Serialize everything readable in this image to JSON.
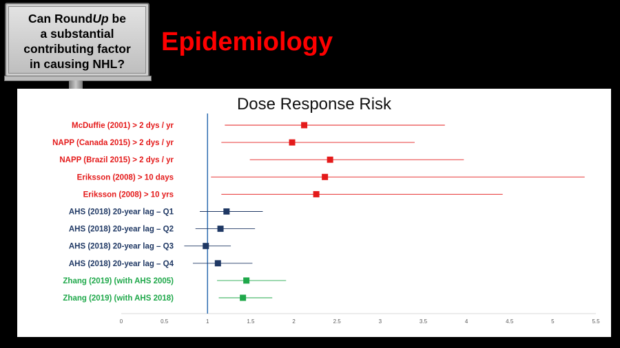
{
  "sign": {
    "line1_pre": "Can Round",
    "line1_em": "Up",
    "line1_post": " be",
    "line2": "a substantial",
    "line3": "contributing factor",
    "line4": "in causing NHL?"
  },
  "slide_title": "Epidemiology",
  "colors": {
    "red": "#e41a1a",
    "navy": "#1f3864",
    "green": "#1fa84a",
    "reference": "#2e6db0"
  },
  "chart_data": {
    "type": "forest",
    "title": "Dose Response Risk",
    "xlim": [
      0,
      5.5
    ],
    "xticks": [
      "0",
      "0.5",
      "1",
      "1.5",
      "2",
      "2.5",
      "3",
      "3.5",
      "4",
      "4.5",
      "5",
      "5.5"
    ],
    "reference_line": 1,
    "rows": [
      {
        "label": "McDuffie (2001) > 2 dys / yr",
        "group": "red",
        "estimate": 2.12,
        "low": 1.2,
        "high": 3.75
      },
      {
        "label": "NAPP (Canada 2015) > 2 dys / yr",
        "group": "red",
        "estimate": 1.98,
        "low": 1.16,
        "high": 3.4
      },
      {
        "label": "NAPP (Brazil 2015) > 2 dys / yr",
        "group": "red",
        "estimate": 2.42,
        "low": 1.49,
        "high": 3.97
      },
      {
        "label": "Eriksson (2008) > 10 days",
        "group": "red",
        "estimate": 2.36,
        "low": 1.04,
        "high": 5.37
      },
      {
        "label": "Eriksson (2008) > 10 yrs",
        "group": "red",
        "estimate": 2.26,
        "low": 1.16,
        "high": 4.42
      },
      {
        "label": "AHS (2018) 20-year lag – Q1",
        "group": "navy",
        "estimate": 1.22,
        "low": 0.91,
        "high": 1.64
      },
      {
        "label": "AHS (2018) 20-year lag – Q2",
        "group": "navy",
        "estimate": 1.15,
        "low": 0.86,
        "high": 1.55
      },
      {
        "label": "AHS (2018) 20-year lag – Q3",
        "group": "navy",
        "estimate": 0.98,
        "low": 0.73,
        "high": 1.27
      },
      {
        "label": "AHS (2018) 20-year lag – Q4",
        "group": "navy",
        "estimate": 1.12,
        "low": 0.83,
        "high": 1.52
      },
      {
        "label": "Zhang (2019) (with AHS 2005)",
        "group": "green",
        "estimate": 1.45,
        "low": 1.11,
        "high": 1.91
      },
      {
        "label": "Zhang (2019) (with AHS 2018)",
        "group": "green",
        "estimate": 1.41,
        "low": 1.13,
        "high": 1.75
      }
    ]
  }
}
